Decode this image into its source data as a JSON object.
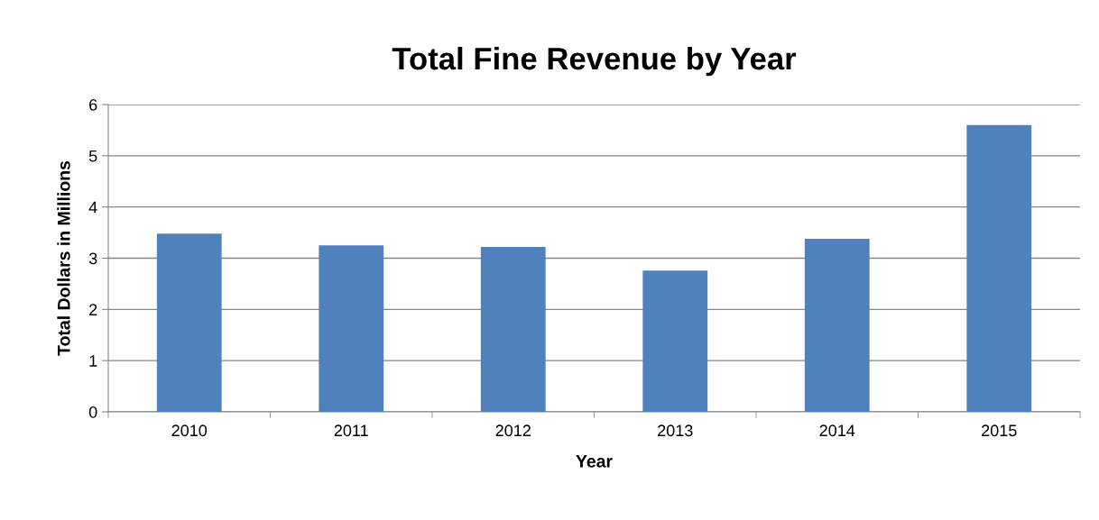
{
  "chart_data": {
    "type": "bar",
    "title": "Total Fine Revenue by Year",
    "xlabel": "Year",
    "ylabel": "Total Dollars in Millions",
    "categories": [
      "2010",
      "2011",
      "2012",
      "2013",
      "2014",
      "2015"
    ],
    "values": [
      3.48,
      3.25,
      3.22,
      2.76,
      3.38,
      5.6
    ],
    "color": "#4f81bd",
    "ylim": [
      0,
      6
    ],
    "yticks": [
      0,
      1,
      2,
      3,
      4,
      5,
      6
    ],
    "grid": "y",
    "legend": false
  }
}
